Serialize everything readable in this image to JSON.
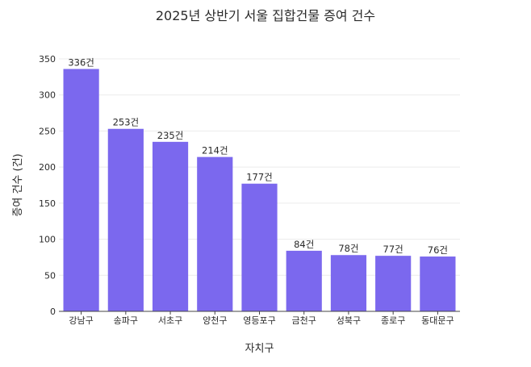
{
  "chart_data": {
    "type": "bar",
    "title": "2025년 상반기 서울 집합건물 증여 건수",
    "xlabel": "자치구",
    "ylabel": "증여 건수 (건)",
    "categories": [
      "강남구",
      "송파구",
      "서초구",
      "양천구",
      "영등포구",
      "금천구",
      "성북구",
      "종로구",
      "동대문구"
    ],
    "values": [
      336,
      253,
      235,
      214,
      177,
      84,
      78,
      77,
      76
    ],
    "data_labels": [
      "336건",
      "253건",
      "235건",
      "214건",
      "177건",
      "84건",
      "78건",
      "77건",
      "76건"
    ],
    "y_ticks": [
      "0",
      "50",
      "100",
      "150",
      "200",
      "250",
      "300",
      "350"
    ],
    "ylim": [
      0,
      350
    ],
    "grid": true,
    "bar_color": "#7b68ee"
  }
}
